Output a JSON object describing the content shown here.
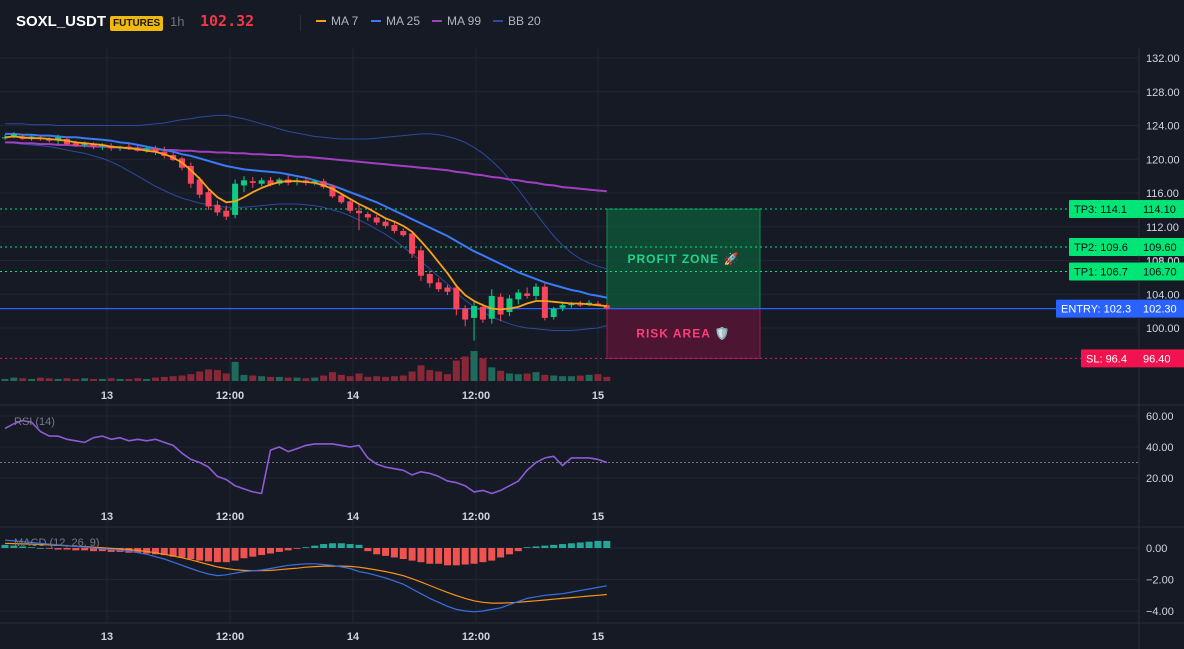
{
  "header": {
    "symbol": "SOXL_USDT",
    "badge": "FUTURES",
    "timeframe": "1h",
    "price": "102.32",
    "legend": [
      {
        "label": "MA 7",
        "color": "#f7a21b"
      },
      {
        "label": "MA 25",
        "color": "#3a7bf6"
      },
      {
        "label": "MA 99",
        "color": "#a23fc0"
      },
      {
        "label": "BB 20",
        "color": "#2a4a9c"
      }
    ]
  },
  "colors": {
    "up": "#0ecb81",
    "down": "#f6465d",
    "vol_up": "#1e6b5c",
    "vol_down": "#8a2737",
    "entry": "#2962ff",
    "tp": "#00e676",
    "sl": "#f0134f",
    "grid": "#222633",
    "bg": "#161a25"
  },
  "zones": {
    "profit_label": "PROFIT ZONE 🚀",
    "risk_label": "RISK AREA 🛡️"
  },
  "chart_data": [
    {
      "type": "candlestick",
      "title": "SOXL_USDT 1h",
      "ylim": [
        96.0,
        133.5
      ],
      "yticks": [
        "132.00",
        "128.00",
        "124.00",
        "120.00",
        "116.00",
        "112.00",
        "108.00",
        "104.00",
        "100.00"
      ],
      "xticks": [
        "13",
        "12:00",
        "14",
        "12:00",
        "15"
      ],
      "candles": [
        {
          "o": 122.5,
          "h": 122.9,
          "l": 122.3,
          "c": 122.6
        },
        {
          "o": 122.7,
          "h": 123.2,
          "l": 122.5,
          "c": 123.0
        },
        {
          "o": 122.6,
          "h": 122.9,
          "l": 122.3,
          "c": 122.4
        },
        {
          "o": 122.5,
          "h": 122.8,
          "l": 122.2,
          "c": 122.7
        },
        {
          "o": 122.5,
          "h": 122.8,
          "l": 122.2,
          "c": 122.4
        },
        {
          "o": 122.4,
          "h": 122.6,
          "l": 122.0,
          "c": 122.2
        },
        {
          "o": 122.3,
          "h": 122.9,
          "l": 121.8,
          "c": 122.6
        },
        {
          "o": 122.4,
          "h": 122.7,
          "l": 121.6,
          "c": 121.8
        },
        {
          "o": 121.9,
          "h": 122.2,
          "l": 121.5,
          "c": 121.6
        },
        {
          "o": 121.7,
          "h": 122.1,
          "l": 121.4,
          "c": 121.9
        },
        {
          "o": 121.8,
          "h": 122.0,
          "l": 121.2,
          "c": 121.5
        },
        {
          "o": 121.5,
          "h": 121.9,
          "l": 121.1,
          "c": 121.7
        },
        {
          "o": 121.6,
          "h": 121.9,
          "l": 121.0,
          "c": 121.3
        },
        {
          "o": 121.3,
          "h": 121.6,
          "l": 121.0,
          "c": 121.4
        },
        {
          "o": 121.5,
          "h": 121.8,
          "l": 121.1,
          "c": 121.3
        },
        {
          "o": 121.3,
          "h": 121.6,
          "l": 120.9,
          "c": 121.0
        },
        {
          "o": 121.1,
          "h": 121.5,
          "l": 120.8,
          "c": 121.3
        },
        {
          "o": 121.3,
          "h": 121.6,
          "l": 120.5,
          "c": 120.8
        },
        {
          "o": 120.9,
          "h": 121.5,
          "l": 120.1,
          "c": 120.4
        },
        {
          "o": 120.5,
          "h": 120.8,
          "l": 119.8,
          "c": 119.9
        },
        {
          "o": 120.1,
          "h": 120.3,
          "l": 118.7,
          "c": 119.0
        },
        {
          "o": 119.2,
          "h": 119.6,
          "l": 116.6,
          "c": 117.1
        },
        {
          "o": 117.6,
          "h": 117.9,
          "l": 115.4,
          "c": 115.8
        },
        {
          "o": 116.1,
          "h": 116.4,
          "l": 114.0,
          "c": 114.4
        },
        {
          "o": 114.6,
          "h": 115.1,
          "l": 113.3,
          "c": 113.7
        },
        {
          "o": 113.9,
          "h": 114.5,
          "l": 112.8,
          "c": 113.2
        },
        {
          "o": 113.4,
          "h": 117.6,
          "l": 113.0,
          "c": 117.1
        },
        {
          "o": 116.9,
          "h": 118.0,
          "l": 116.1,
          "c": 117.5
        },
        {
          "o": 117.4,
          "h": 117.9,
          "l": 116.6,
          "c": 117.2
        },
        {
          "o": 117.1,
          "h": 117.8,
          "l": 116.8,
          "c": 117.5
        },
        {
          "o": 117.5,
          "h": 117.9,
          "l": 116.8,
          "c": 117.0
        },
        {
          "o": 117.1,
          "h": 117.8,
          "l": 116.9,
          "c": 117.6
        },
        {
          "o": 117.6,
          "h": 118.1,
          "l": 116.9,
          "c": 117.2
        },
        {
          "o": 117.3,
          "h": 117.8,
          "l": 116.9,
          "c": 117.5
        },
        {
          "o": 117.5,
          "h": 117.9,
          "l": 116.9,
          "c": 117.2
        },
        {
          "o": 117.2,
          "h": 117.6,
          "l": 116.9,
          "c": 117.4
        },
        {
          "o": 117.4,
          "h": 117.7,
          "l": 116.5,
          "c": 116.7
        },
        {
          "o": 116.8,
          "h": 117.0,
          "l": 115.4,
          "c": 115.6
        },
        {
          "o": 115.7,
          "h": 116.0,
          "l": 114.7,
          "c": 114.9
        },
        {
          "o": 115.0,
          "h": 115.2,
          "l": 113.6,
          "c": 113.9
        },
        {
          "o": 113.9,
          "h": 114.6,
          "l": 111.6,
          "c": 113.6
        },
        {
          "o": 113.5,
          "h": 113.8,
          "l": 112.7,
          "c": 113.1
        },
        {
          "o": 113.1,
          "h": 113.4,
          "l": 112.2,
          "c": 112.5
        },
        {
          "o": 112.6,
          "h": 112.9,
          "l": 111.8,
          "c": 112.1
        },
        {
          "o": 112.2,
          "h": 112.7,
          "l": 111.2,
          "c": 111.5
        },
        {
          "o": 111.5,
          "h": 111.8,
          "l": 110.8,
          "c": 111.0
        },
        {
          "o": 111.2,
          "h": 111.5,
          "l": 108.3,
          "c": 108.8
        },
        {
          "o": 109.2,
          "h": 109.6,
          "l": 105.6,
          "c": 106.2
        },
        {
          "o": 106.4,
          "h": 106.8,
          "l": 104.8,
          "c": 105.3
        },
        {
          "o": 105.4,
          "h": 105.9,
          "l": 104.3,
          "c": 104.6
        },
        {
          "o": 104.8,
          "h": 105.1,
          "l": 103.9,
          "c": 104.3
        },
        {
          "o": 104.8,
          "h": 105.2,
          "l": 101.5,
          "c": 102.2
        },
        {
          "o": 102.3,
          "h": 102.7,
          "l": 100.2,
          "c": 101.0
        },
        {
          "o": 101.2,
          "h": 103.2,
          "l": 98.5,
          "c": 102.6
        },
        {
          "o": 102.5,
          "h": 102.9,
          "l": 100.6,
          "c": 101.0
        },
        {
          "o": 101.1,
          "h": 104.6,
          "l": 100.5,
          "c": 103.8
        },
        {
          "o": 103.7,
          "h": 104.1,
          "l": 100.8,
          "c": 101.6
        },
        {
          "o": 101.9,
          "h": 103.9,
          "l": 101.4,
          "c": 103.5
        },
        {
          "o": 103.4,
          "h": 104.6,
          "l": 102.8,
          "c": 104.2
        },
        {
          "o": 104.1,
          "h": 104.8,
          "l": 103.5,
          "c": 103.8
        },
        {
          "o": 103.8,
          "h": 105.3,
          "l": 103.3,
          "c": 104.9
        },
        {
          "o": 104.9,
          "h": 105.3,
          "l": 100.9,
          "c": 101.2
        },
        {
          "o": 101.3,
          "h": 102.5,
          "l": 101.0,
          "c": 102.3
        },
        {
          "o": 102.4,
          "h": 103.1,
          "l": 102.0,
          "c": 102.7
        },
        {
          "o": 102.7,
          "h": 103.1,
          "l": 102.4,
          "c": 102.9
        },
        {
          "o": 102.8,
          "h": 103.2,
          "l": 102.5,
          "c": 102.7
        },
        {
          "o": 102.8,
          "h": 103.3,
          "l": 102.6,
          "c": 103.0
        },
        {
          "o": 102.9,
          "h": 103.2,
          "l": 102.6,
          "c": 102.8
        },
        {
          "o": 102.7,
          "h": 102.9,
          "l": 102.2,
          "c": 102.3
        }
      ],
      "volume_dir_pattern": "follows candles",
      "volumes": [
        3,
        5,
        4,
        3,
        5,
        4,
        3,
        4,
        3,
        4,
        3,
        3,
        4,
        3,
        3,
        4,
        3,
        5,
        6,
        7,
        8,
        10,
        14,
        17,
        16,
        11,
        28,
        9,
        8,
        7,
        6,
        6,
        5,
        5,
        4,
        5,
        8,
        13,
        9,
        7,
        11,
        6,
        7,
        6,
        7,
        8,
        14,
        23,
        16,
        14,
        10,
        30,
        36,
        44,
        33,
        20,
        15,
        11,
        10,
        11,
        13,
        9,
        8,
        7,
        7,
        8,
        9,
        10,
        6
      ],
      "ma7": [
        122.6,
        122.7,
        122.6,
        122.5,
        122.5,
        122.4,
        122.3,
        122.2,
        122.0,
        121.9,
        121.8,
        121.7,
        121.5,
        121.4,
        121.3,
        121.2,
        121.0,
        120.9,
        120.6,
        120.2,
        119.6,
        118.7,
        117.7,
        116.5,
        115.5,
        114.9,
        115.0,
        115.5,
        116.1,
        116.6,
        117.0,
        117.3,
        117.4,
        117.4,
        117.3,
        117.2,
        116.9,
        116.5,
        115.9,
        115.3,
        114.7,
        114.2,
        113.6,
        113.0,
        112.6,
        112.1,
        111.4,
        110.3,
        109.1,
        107.8,
        106.5,
        105.0,
        103.9,
        103.2,
        102.7,
        102.3,
        102.2,
        102.3,
        102.5,
        102.9,
        103.2,
        103.2,
        103.1,
        103.0,
        102.9,
        102.9,
        102.8,
        102.7,
        102.6
      ],
      "ma25": [
        123.0,
        123.0,
        122.9,
        122.9,
        122.8,
        122.8,
        122.7,
        122.6,
        122.6,
        122.5,
        122.4,
        122.3,
        122.2,
        122.0,
        121.9,
        121.7,
        121.5,
        121.3,
        121.1,
        120.9,
        120.6,
        120.4,
        120.1,
        119.8,
        119.5,
        119.2,
        119.0,
        118.8,
        118.7,
        118.6,
        118.5,
        118.4,
        118.2,
        118.0,
        117.8,
        117.5,
        117.2,
        116.9,
        116.5,
        116.1,
        115.7,
        115.3,
        114.9,
        114.4,
        113.9,
        113.4,
        112.9,
        112.4,
        111.9,
        111.4,
        110.9,
        110.3,
        109.7,
        109.1,
        108.6,
        108.1,
        107.6,
        107.1,
        106.6,
        106.2,
        105.8,
        105.4,
        105.1,
        104.8,
        104.5,
        104.3,
        104.0,
        103.8,
        103.6
      ],
      "ma99": [
        122.0,
        122.0,
        121.9,
        121.9,
        121.8,
        121.8,
        121.7,
        121.7,
        121.6,
        121.6,
        121.5,
        121.5,
        121.4,
        121.4,
        121.3,
        121.3,
        121.2,
        121.2,
        121.1,
        121.1,
        121.0,
        121.0,
        120.9,
        120.9,
        120.8,
        120.8,
        120.7,
        120.7,
        120.6,
        120.6,
        120.5,
        120.5,
        120.4,
        120.3,
        120.3,
        120.2,
        120.1,
        120.0,
        119.9,
        119.8,
        119.7,
        119.6,
        119.5,
        119.4,
        119.3,
        119.2,
        119.1,
        119.0,
        118.9,
        118.8,
        118.7,
        118.5,
        118.4,
        118.2,
        118.1,
        117.9,
        117.8,
        117.6,
        117.5,
        117.3,
        117.2,
        117.0,
        116.9,
        116.7,
        116.6,
        116.5,
        116.4,
        116.3,
        116.2
      ],
      "bb_upper": [
        124.2,
        124.2,
        124.2,
        124.1,
        124.1,
        124.1,
        124.0,
        124.0,
        124.0,
        124.0,
        124.0,
        124.0,
        124.0,
        124.0,
        124.0,
        124.0,
        124.1,
        124.2,
        124.3,
        124.5,
        124.7,
        124.8,
        125.0,
        125.1,
        125.2,
        125.2,
        125.0,
        124.8,
        124.5,
        124.2,
        123.9,
        123.6,
        123.3,
        123.1,
        122.9,
        122.7,
        122.6,
        122.5,
        122.4,
        122.4,
        122.4,
        122.4,
        122.5,
        122.6,
        122.7,
        122.8,
        122.9,
        123.0,
        123.0,
        122.9,
        122.7,
        122.4,
        122.0,
        121.4,
        120.7,
        119.8,
        118.8,
        117.6,
        116.4,
        115.0,
        113.6,
        112.2,
        110.9,
        109.8,
        108.9,
        108.2,
        107.7,
        107.3,
        107.0
      ],
      "bb_lower": [
        122.0,
        121.9,
        121.8,
        121.7,
        121.6,
        121.5,
        121.3,
        121.1,
        120.9,
        120.7,
        120.4,
        120.1,
        119.7,
        119.2,
        118.6,
        118.0,
        117.4,
        116.8,
        116.3,
        115.8,
        115.4,
        115.1,
        114.8,
        114.6,
        114.4,
        114.3,
        114.3,
        114.3,
        114.4,
        114.5,
        114.6,
        114.7,
        114.7,
        114.7,
        114.6,
        114.5,
        114.3,
        114.0,
        113.7,
        113.3,
        112.8,
        112.3,
        111.7,
        111.1,
        110.4,
        109.6,
        108.8,
        107.9,
        107.0,
        106.1,
        105.2,
        104.2,
        103.3,
        102.5,
        101.9,
        101.3,
        100.9,
        100.5,
        100.2,
        100.0,
        99.9,
        99.8,
        99.7,
        99.7,
        99.7,
        99.8,
        99.9,
        100.0,
        100.3
      ],
      "levels": [
        {
          "name": "TP3",
          "value": 114.1,
          "tag": "TP3: 114.1",
          "price": "114.10"
        },
        {
          "name": "TP2",
          "value": 109.6,
          "tag": "TP2: 109.6",
          "price": "109.60"
        },
        {
          "name": "TP1",
          "value": 106.7,
          "tag": "TP1: 106.7",
          "price": "106.70"
        },
        {
          "name": "ENTRY",
          "value": 102.3,
          "tag": "ENTRY: 102.3",
          "price": "102.30"
        },
        {
          "name": "SL",
          "value": 96.4,
          "tag": "SL: 96.4",
          "price": "96.40"
        }
      ],
      "faint_axis_label": "108.00"
    },
    {
      "type": "line",
      "title": "RSI (14)",
      "ylim": [
        5,
        65
      ],
      "yticks": [
        "60.00",
        "40.00",
        "20.00"
      ],
      "reference": 30,
      "values": [
        52,
        55,
        57,
        56,
        50,
        47,
        47,
        45,
        44,
        43,
        46,
        47,
        45,
        46,
        44,
        45,
        44,
        45,
        43,
        41,
        36,
        32,
        30,
        27,
        21,
        19,
        15,
        13,
        11,
        10,
        38,
        40,
        37,
        39,
        41,
        42,
        42,
        42,
        41,
        40,
        41,
        33,
        29,
        27,
        26,
        25,
        22,
        24,
        23,
        21,
        18,
        17,
        15,
        11,
        12,
        10,
        12,
        15,
        18,
        25,
        30,
        33,
        34,
        28,
        33,
        33,
        33,
        32,
        30
      ]
    },
    {
      "type": "bar",
      "title": "MACD (12, 26, 9)",
      "ylim": [
        -4.8,
        1.1
      ],
      "yticks": [
        "0.00",
        "−2.00",
        "−4.00"
      ],
      "histogram": [
        0.2,
        0.15,
        0.1,
        0.05,
        0.0,
        -0.05,
        -0.1,
        -0.1,
        -0.15,
        -0.15,
        -0.2,
        -0.2,
        -0.25,
        -0.25,
        -0.3,
        -0.3,
        -0.35,
        -0.4,
        -0.45,
        -0.55,
        -0.6,
        -0.7,
        -0.8,
        -0.85,
        -0.9,
        -0.9,
        -0.8,
        -0.65,
        -0.55,
        -0.45,
        -0.35,
        -0.25,
        -0.15,
        -0.05,
        0.05,
        0.15,
        0.25,
        0.3,
        0.3,
        0.25,
        0.2,
        -0.2,
        -0.4,
        -0.5,
        -0.6,
        -0.7,
        -0.8,
        -0.9,
        -1.0,
        -1.0,
        -1.1,
        -1.1,
        -1.05,
        -1.0,
        -0.9,
        -0.8,
        -0.6,
        -0.4,
        -0.2,
        0.05,
        0.1,
        0.15,
        0.2,
        0.25,
        0.3,
        0.35,
        0.4,
        0.45,
        0.45
      ],
      "macd": [
        0.5,
        0.45,
        0.4,
        0.35,
        0.3,
        0.25,
        0.2,
        0.15,
        0.1,
        0.05,
        0.0,
        -0.05,
        -0.1,
        -0.15,
        -0.2,
        -0.3,
        -0.4,
        -0.55,
        -0.7,
        -0.9,
        -1.1,
        -1.3,
        -1.5,
        -1.65,
        -1.75,
        -1.7,
        -1.6,
        -1.5,
        -1.45,
        -1.4,
        -1.3,
        -1.2,
        -1.1,
        -1.05,
        -1.0,
        -1.0,
        -1.05,
        -1.1,
        -1.2,
        -1.3,
        -1.5,
        -1.6,
        -1.75,
        -1.9,
        -2.1,
        -2.3,
        -2.6,
        -2.9,
        -3.2,
        -3.45,
        -3.7,
        -3.9,
        -4.0,
        -4.05,
        -4.0,
        -3.9,
        -3.8,
        -3.6,
        -3.4,
        -3.2,
        -3.1,
        -3.0,
        -2.95,
        -2.9,
        -2.8,
        -2.7,
        -2.6,
        -2.5,
        -2.4
      ],
      "signal": [
        0.3,
        0.28,
        0.26,
        0.24,
        0.22,
        0.2,
        0.17,
        0.14,
        0.11,
        0.08,
        0.05,
        0.02,
        -0.02,
        -0.06,
        -0.1,
        -0.15,
        -0.22,
        -0.3,
        -0.4,
        -0.5,
        -0.62,
        -0.75,
        -0.9,
        -1.05,
        -1.2,
        -1.3,
        -1.38,
        -1.42,
        -1.44,
        -1.44,
        -1.42,
        -1.38,
        -1.33,
        -1.28,
        -1.22,
        -1.18,
        -1.15,
        -1.14,
        -1.15,
        -1.17,
        -1.22,
        -1.3,
        -1.4,
        -1.5,
        -1.62,
        -1.76,
        -1.95,
        -2.15,
        -2.38,
        -2.6,
        -2.82,
        -3.02,
        -3.2,
        -3.35,
        -3.45,
        -3.5,
        -3.5,
        -3.48,
        -3.45,
        -3.4,
        -3.35,
        -3.3,
        -3.25,
        -3.2,
        -3.15,
        -3.1,
        -3.05,
        -3.0,
        -2.95
      ]
    }
  ]
}
